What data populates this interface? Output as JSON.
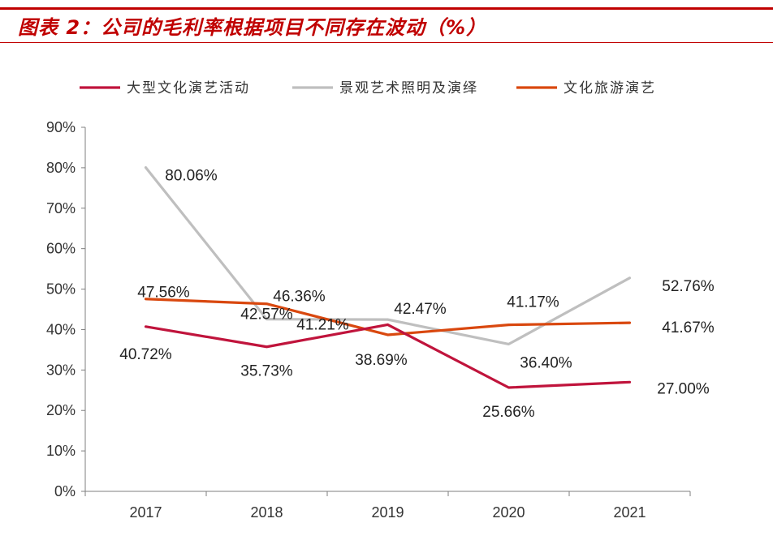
{
  "title": "图表 2：公司的毛利率根据项目不同存在波动（%）",
  "colors": {
    "accent": "#c00000",
    "series_1": "#c0143c",
    "series_2": "#bfbfbf",
    "series_3": "#d9480f"
  },
  "chart_data": {
    "type": "line",
    "categories": [
      "2017",
      "2018",
      "2019",
      "2020",
      "2021"
    ],
    "ylim": [
      0,
      90
    ],
    "yticks": [
      "0%",
      "10%",
      "20%",
      "30%",
      "40%",
      "50%",
      "60%",
      "70%",
      "80%",
      "90%"
    ],
    "grid": false,
    "legend": "top",
    "series": [
      {
        "name": "大型文化演艺活动",
        "values": [
          40.72,
          35.73,
          41.21,
          25.66,
          27.0
        ],
        "labels": [
          "40.72%",
          "35.73%",
          "41.21%",
          "25.66%",
          "27.00%"
        ],
        "color": "#c0143c"
      },
      {
        "name": "景观艺术照明及演绎",
        "values": [
          80.06,
          42.57,
          42.47,
          36.4,
          52.76
        ],
        "labels": [
          "80.06%",
          "42.57%",
          "42.47%",
          "36.40%",
          "52.76%"
        ],
        "color": "#bfbfbf"
      },
      {
        "name": "文化旅游演艺",
        "values": [
          47.56,
          46.36,
          38.69,
          41.17,
          41.67
        ],
        "labels": [
          "47.56%",
          "46.36%",
          "38.69%",
          "41.17%",
          "41.67%"
        ],
        "color": "#d9480f"
      }
    ]
  }
}
